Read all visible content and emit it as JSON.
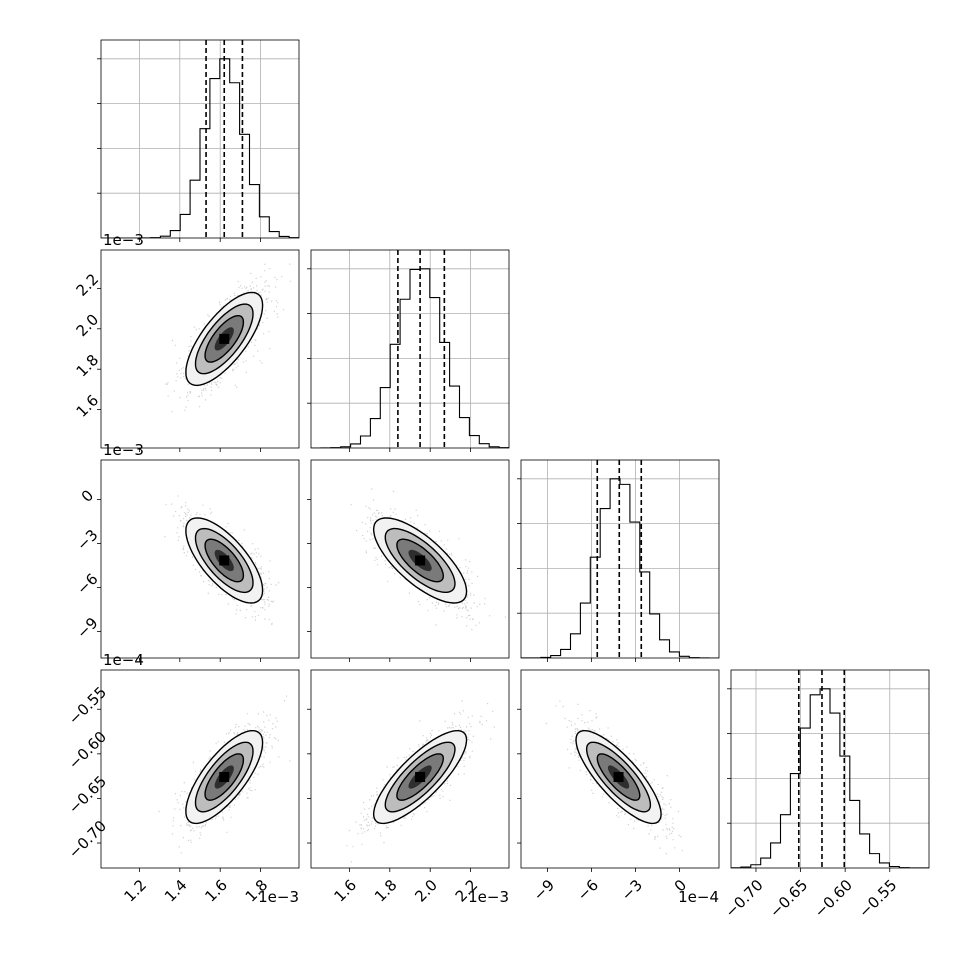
{
  "chart_data": {
    "type": "corner",
    "parameters": [
      {
        "mean": 0.00162,
        "sd": 9.5e-05,
        "range": [
          0.00101,
          0.00199
        ],
        "ticks": [
          0.0012,
          0.0014,
          0.0016,
          0.0018
        ],
        "tick_labels": [
          "1.2",
          "1.4",
          "1.6",
          "1.8"
        ],
        "offset_label": "1e−3",
        "quantiles": [
          0.00153,
          0.00162,
          0.00171
        ]
      },
      {
        "mean": 0.00195,
        "sd": 0.000115,
        "range": [
          0.00141,
          0.00239
        ],
        "ticks": [
          0.0016,
          0.0018,
          0.002,
          0.0022
        ],
        "tick_labels": [
          "1.6",
          "1.8",
          "2.0",
          "2.2"
        ],
        "offset_label": "1e−3",
        "quantiles": [
          0.00184,
          0.00195,
          0.00207
        ]
      },
      {
        "mean": -0.000415,
        "sd": 0.000145,
        "range": [
          -0.00108,
          0.00027
        ],
        "ticks": [
          -0.0009,
          -0.0006,
          -0.0003,
          0
        ],
        "tick_labels": [
          "−9",
          "−6",
          "−3",
          "0"
        ],
        "offset_label": "1e−4",
        "quantiles": [
          -0.00056,
          -0.00041,
          -0.00026
        ]
      },
      {
        "mean": -0.626,
        "sd": 0.026,
        "range": [
          -0.728,
          -0.506
        ],
        "ticks": [
          -0.7,
          -0.65,
          -0.6,
          -0.55
        ],
        "tick_labels": [
          "−0.70",
          "−0.65",
          "−0.60",
          "−0.55"
        ],
        "offset_label": "",
        "quantiles": [
          -0.652,
          -0.626,
          -0.601
        ]
      }
    ],
    "correlations": [
      {
        "pair": [
          0,
          1
        ],
        "rho": 0.72
      },
      {
        "pair": [
          0,
          2
        ],
        "rho": -0.7
      },
      {
        "pair": [
          1,
          2
        ],
        "rho": -0.73
      },
      {
        "pair": [
          0,
          3
        ],
        "rho": 0.74
      },
      {
        "pair": [
          1,
          3
        ],
        "rho": 0.8
      },
      {
        "pair": [
          2,
          3
        ],
        "rho": -0.8
      }
    ],
    "histogram_bins": 20,
    "quantile_levels": [
      0.16,
      0.5,
      0.84
    ],
    "contour_levels_sigma": [
      0.5,
      1.0,
      1.5,
      2.0
    ],
    "grid": true,
    "colors": {
      "lines": "#000000",
      "density": "#000000",
      "grid": "#b0b0b0"
    }
  }
}
